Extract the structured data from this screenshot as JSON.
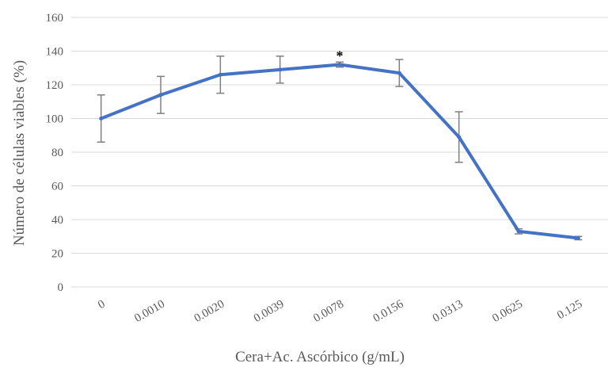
{
  "chart_data": {
    "type": "line",
    "title": "",
    "xlabel": "Cera+Ac. Ascórbico (g/mL)",
    "ylabel": "Número de células viables (%)",
    "ylim": [
      0,
      160
    ],
    "yticks": [
      0,
      20,
      40,
      60,
      80,
      100,
      120,
      140,
      160
    ],
    "grid": true,
    "categories": [
      "0",
      "0.0010",
      "0.0020",
      "0.0039",
      "0.0078",
      "0.0156",
      "0.0313",
      "0.0625",
      "0.125"
    ],
    "series": [
      {
        "values": [
          100,
          114,
          126,
          129,
          132,
          127,
          89,
          33,
          29
        ],
        "errors": [
          14,
          11,
          11,
          8,
          1.5,
          8,
          15,
          1.5,
          1
        ],
        "color": "#4472c4"
      }
    ],
    "annotations": [
      {
        "category": "0.0078",
        "text": "*"
      }
    ]
  }
}
